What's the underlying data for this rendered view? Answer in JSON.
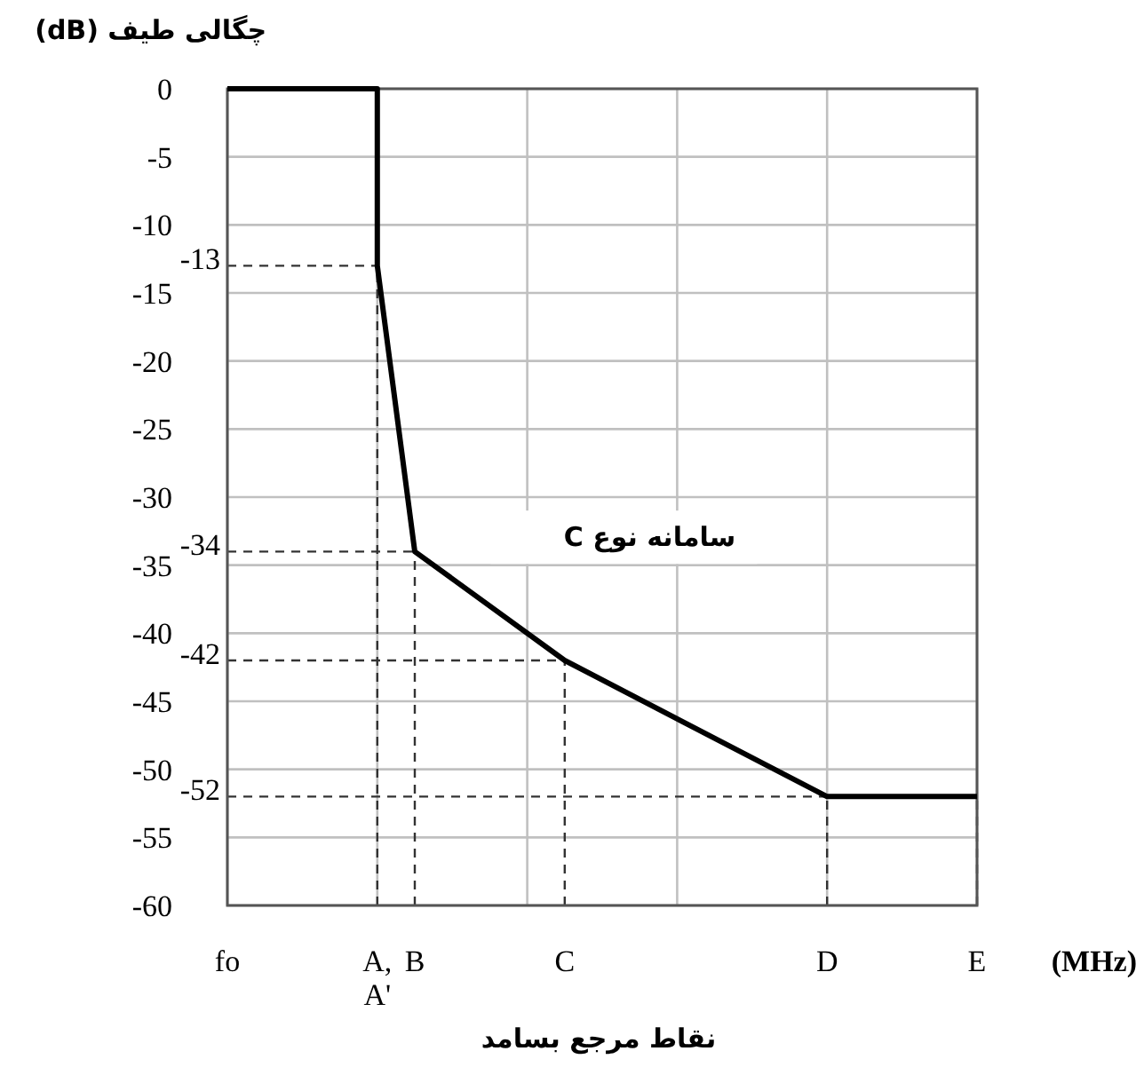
{
  "chart_data": {
    "type": "line",
    "ylabel": "چگالی طیف (dB)",
    "xlabel": "نقاط مرجع بسامد",
    "annotations": [
      "(MHz)"
    ],
    "categories": [
      "fo",
      null,
      null,
      null,
      "A,\nA'",
      "B",
      null,
      null,
      null,
      "C",
      null,
      null,
      null,
      null,
      null,
      null,
      "D",
      null,
      null,
      null,
      "E"
    ],
    "series": [
      {
        "name": "سامانه نوع C",
        "color": "#000000",
        "x": [
          "fo",
          "A,\nA'",
          "A,\nA'",
          "B",
          "C",
          "D",
          "E"
        ],
        "values": [
          0,
          0,
          -13,
          -34,
          -42,
          -52,
          -52
        ]
      }
    ],
    "ylim": [
      -60,
      0
    ],
    "yticks": [
      0,
      -5,
      -10,
      -15,
      -20,
      -25,
      -30,
      -35,
      -40,
      -45,
      -50,
      -55,
      -60
    ],
    "grid": true,
    "line_style": "solid",
    "ref_lines": [
      {
        "axis": "y",
        "value": -13,
        "label": "-13",
        "line_style": "dashed"
      },
      {
        "axis": "y",
        "value": -34,
        "label": "-34",
        "line_style": "dashed"
      },
      {
        "axis": "y",
        "value": -42,
        "label": "-42",
        "line_style": "dashed"
      },
      {
        "axis": "y",
        "value": -52,
        "label": "-52",
        "line_style": "dashed"
      },
      {
        "axis": "x",
        "value": "A,\nA'",
        "label": null,
        "line_style": "dashed"
      },
      {
        "axis": "x",
        "value": "B",
        "label": null,
        "line_style": "dashed"
      },
      {
        "axis": "x",
        "value": "C",
        "label": null,
        "line_style": "dashed"
      },
      {
        "axis": "x",
        "value": "D",
        "label": null,
        "line_style": "dashed"
      },
      {
        "axis": "x",
        "value": "E",
        "label": null,
        "line_style": "dashed"
      }
    ]
  }
}
